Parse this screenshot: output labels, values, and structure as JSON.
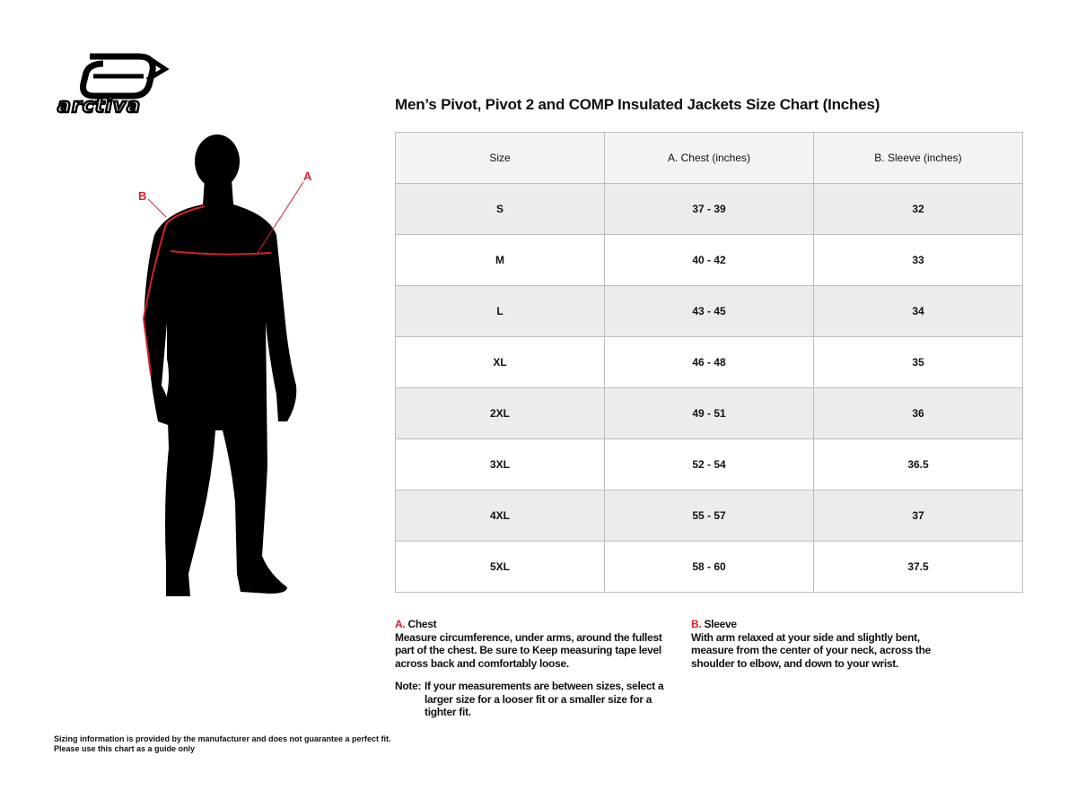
{
  "brand": {
    "logo_text": "arctiva"
  },
  "figure": {
    "label_a": "A",
    "label_b": "B",
    "accent": "#d6202c"
  },
  "title": "Men’s Pivot, Pivot 2 and COMP Insulated Jackets Size Chart (Inches)",
  "table": {
    "headers": [
      "Size",
      "A. Chest (inches)",
      "B. Sleeve (inches)"
    ],
    "rows": [
      [
        "S",
        "37 - 39",
        "32"
      ],
      [
        "M",
        "40 - 42",
        "33"
      ],
      [
        "L",
        "43 - 45",
        "34"
      ],
      [
        "XL",
        "46 - 48",
        "35"
      ],
      [
        "2XL",
        "49 - 51",
        "36"
      ],
      [
        "3XL",
        "52 - 54",
        "36.5"
      ],
      [
        "4XL",
        "55 - 57",
        "37"
      ],
      [
        "5XL",
        "58 - 60",
        "37.5"
      ]
    ]
  },
  "chest": {
    "letter": "A.",
    "title": "Chest",
    "text": "Measure circumference, under arms, around the fullest part of the chest. Be sure to Keep measuring tape level across back and comfortably loose."
  },
  "sleeve": {
    "letter": "B.",
    "title": "Sleeve",
    "text": "With arm relaxed at your side and slightly bent, measure from the center of your neck, across the shoulder to elbow, and down to your wrist."
  },
  "note": {
    "label": "Note:",
    "text": "If your measurements are between sizes, select a larger size for a looser fit or a smaller size for a tighter fit."
  },
  "disclaimer": {
    "line1": "Sizing information is provided by the manufacturer and does not guarantee a perfect fit.",
    "line2": "Please use this chart as a guide only"
  }
}
